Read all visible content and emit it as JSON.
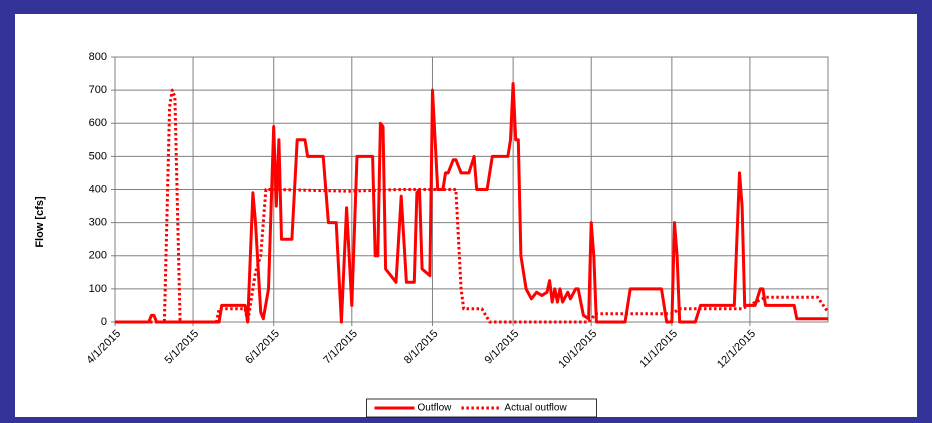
{
  "chart_data": {
    "type": "line",
    "y_label": "Flow [cfs]",
    "xlim": [
      "4/1/2015",
      "12/31/2015"
    ],
    "xticks": [
      "4/1/2015",
      "5/1/2015",
      "6/1/2015",
      "7/1/2015",
      "8/1/2015",
      "9/1/2015",
      "10/1/2015",
      "11/1/2015",
      "12/1/2015"
    ],
    "ylim": [
      0,
      800
    ],
    "yticks": [
      0,
      100,
      200,
      300,
      400,
      500,
      600,
      700,
      800
    ],
    "grid": true,
    "legend": "bottom",
    "series": [
      {
        "name": "Outflow",
        "color": "#ff0000",
        "line_style": "solid",
        "x": [
          "4/1/2015",
          "4/14/2015",
          "4/15/2015",
          "4/16/2015",
          "4/17/2015",
          "5/11/2015",
          "5/12/2015",
          "5/21/2015",
          "5/22/2015",
          "5/24/2015",
          "5/25/2015",
          "5/27/2015",
          "5/28/2015",
          "5/30/2015",
          "6/1/2015",
          "6/2/2015",
          "6/3/2015",
          "6/4/2015",
          "6/8/2015",
          "6/10/2015",
          "6/13/2015",
          "6/14/2015",
          "6/20/2015",
          "6/22/2015",
          "6/25/2015",
          "6/27/2015",
          "6/29/2015",
          "7/1/2015",
          "7/3/2015",
          "7/9/2015",
          "7/10/2015",
          "7/11/2015",
          "7/12/2015",
          "7/13/2015",
          "7/14/2015",
          "7/16/2015",
          "7/18/2015",
          "7/20/2015",
          "7/22/2015",
          "7/25/2015",
          "7/26/2015",
          "7/27/2015",
          "7/28/2015",
          "7/31/2015",
          "8/1/2015",
          "8/3/2015",
          "8/5/2015",
          "8/6/2015",
          "8/7/2015",
          "8/9/2015",
          "8/10/2015",
          "8/12/2015",
          "8/15/2015",
          "8/17/2015",
          "8/18/2015",
          "8/22/2015",
          "8/24/2015",
          "8/30/2015",
          "8/31/2015",
          "9/1/2015",
          "9/2/2015",
          "9/3/2015",
          "9/4/2015",
          "9/6/2015",
          "9/8/2015",
          "9/10/2015",
          "9/12/2015",
          "9/14/2015",
          "9/15/2015",
          "9/16/2015",
          "9/17/2015",
          "9/18/2015",
          "9/19/2015",
          "9/20/2015",
          "9/22/2015",
          "9/23/2015",
          "9/25/2015",
          "9/26/2015",
          "9/28/2015",
          "9/30/2015",
          "10/1/2015",
          "10/2/2015",
          "10/3/2015",
          "10/14/2015",
          "10/16/2015",
          "10/28/2015",
          "10/30/2015",
          "11/1/2015",
          "11/2/2015",
          "11/3/2015",
          "11/4/2015",
          "11/10/2015",
          "11/12/2015",
          "11/25/2015",
          "11/27/2015",
          "11/28/2015",
          "11/29/2015",
          "12/3/2015",
          "12/5/2015",
          "12/6/2015",
          "12/7/2015",
          "12/18/2015",
          "12/19/2015",
          "12/31/2015"
        ],
        "values": [
          0,
          0,
          20,
          20,
          0,
          0,
          50,
          50,
          0,
          390,
          300,
          30,
          10,
          100,
          590,
          350,
          550,
          250,
          250,
          550,
          550,
          500,
          500,
          300,
          300,
          0,
          345,
          50,
          500,
          500,
          200,
          200,
          600,
          590,
          160,
          140,
          120,
          380,
          120,
          120,
          390,
          400,
          160,
          140,
          700,
          400,
          400,
          450,
          450,
          490,
          490,
          450,
          450,
          500,
          400,
          400,
          500,
          500,
          550,
          720,
          550,
          550,
          200,
          100,
          70,
          90,
          80,
          90,
          125,
          60,
          100,
          60,
          100,
          60,
          90,
          70,
          100,
          100,
          20,
          10,
          300,
          200,
          0,
          0,
          100,
          100,
          0,
          0,
          300,
          200,
          0,
          0,
          50,
          50,
          450,
          350,
          50,
          50,
          100,
          100,
          50,
          50,
          10,
          10
        ]
      },
      {
        "name": "Actual outflow",
        "color": "#ff0000",
        "line_style": "dotted",
        "x": [
          "4/1/2015",
          "4/20/2015",
          "4/22/2015",
          "4/23/2015",
          "4/24/2015",
          "4/26/2015",
          "5/10/2015",
          "5/11/2015",
          "5/21/2015",
          "5/22/2015",
          "5/25/2015",
          "5/27/2015",
          "5/29/2015",
          "6/1/2015",
          "6/30/2015",
          "7/20/2015",
          "8/10/2015",
          "8/12/2015",
          "8/13/2015",
          "8/20/2015",
          "8/23/2015",
          "9/30/2015",
          "10/1/2015",
          "10/3/2015",
          "11/1/2015",
          "11/4/2015",
          "11/28/2015",
          "12/7/2015",
          "12/27/2015",
          "12/31/2015"
        ],
        "values": [
          0,
          0,
          650,
          700,
          680,
          0,
          0,
          40,
          40,
          0,
          150,
          200,
          400,
          400,
          395,
          400,
          400,
          100,
          40,
          40,
          0,
          0,
          10,
          25,
          25,
          40,
          40,
          75,
          75,
          30
        ]
      }
    ]
  }
}
